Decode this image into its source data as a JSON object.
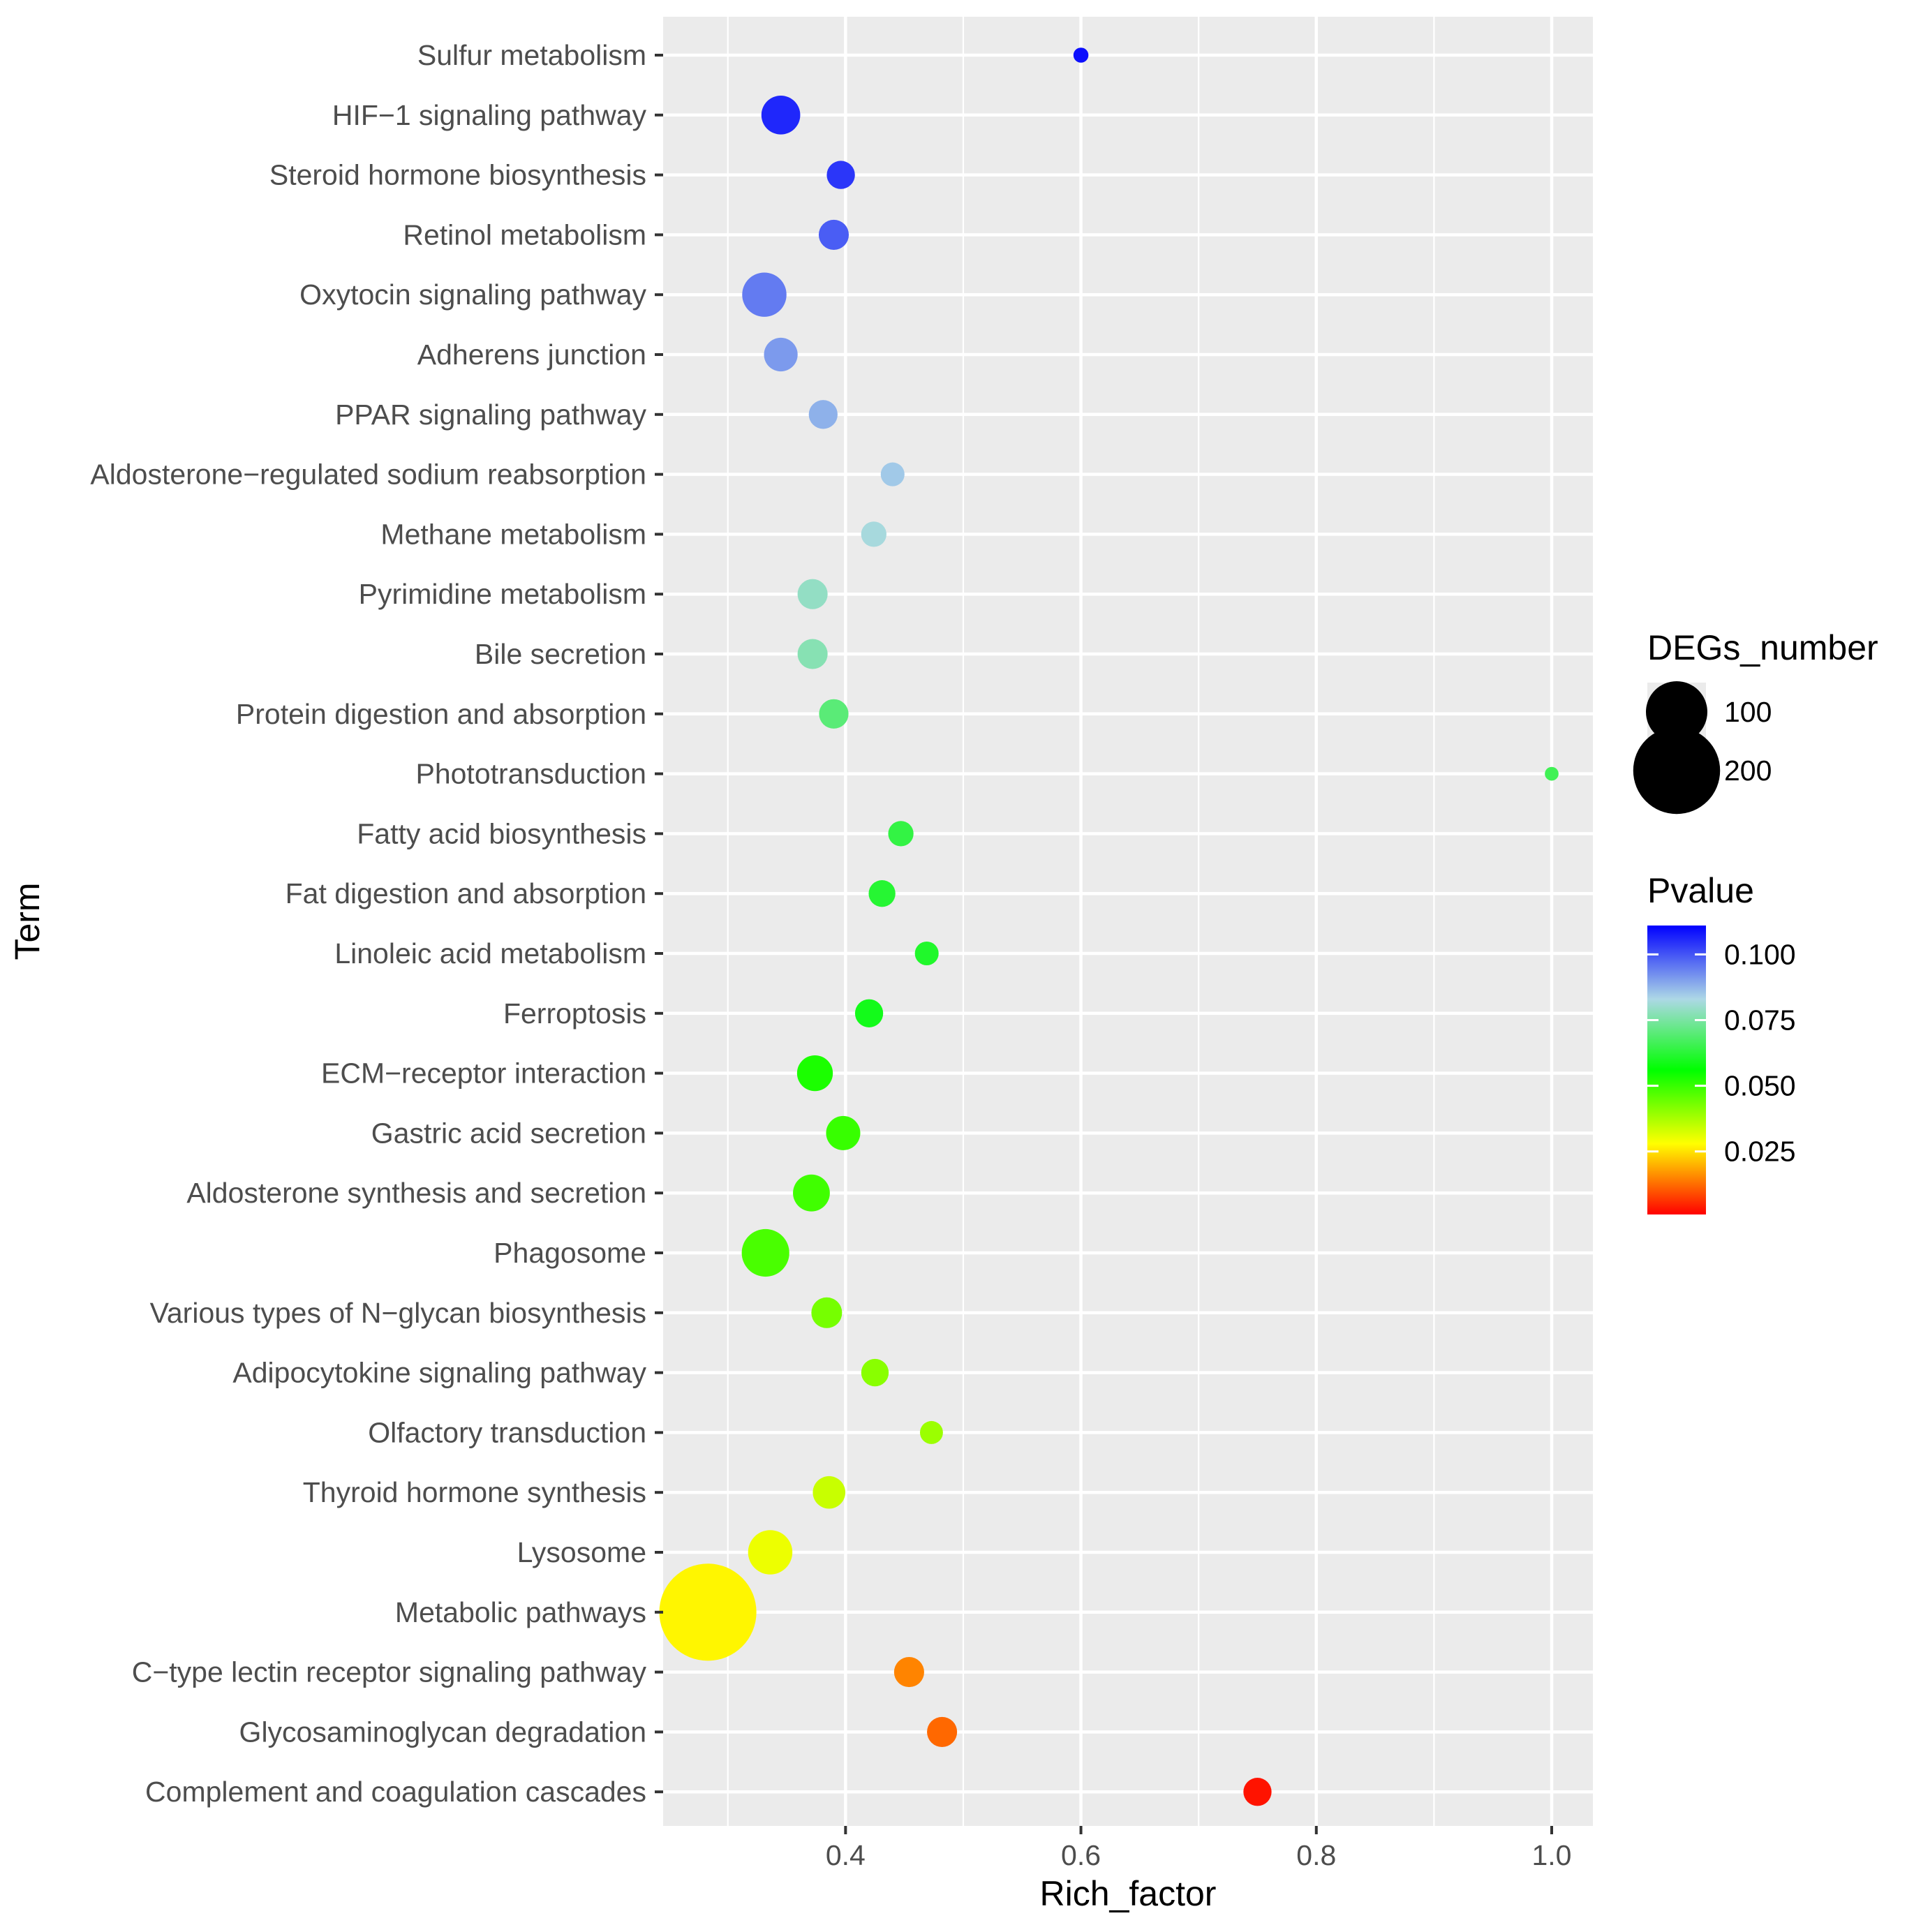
{
  "chart_data": {
    "type": "scatter",
    "xlabel": "Rich_factor",
    "ylabel": "Term",
    "xlim": [
      0.245,
      1.035
    ],
    "x_ticks": [
      {
        "value": 0.4,
        "label": "0.4"
      },
      {
        "value": 0.6,
        "label": "0.6"
      },
      {
        "value": 0.8,
        "label": "0.8"
      },
      {
        "value": 1.0,
        "label": "1.0"
      }
    ],
    "grid": true,
    "points": [
      {
        "term": "Sulfur metabolism",
        "rich_factor": 0.6,
        "degs_number": 6,
        "pvalue": 0.109
      },
      {
        "term": "HIF−1 signaling pathway",
        "rich_factor": 0.345,
        "degs_number": 40,
        "pvalue": 0.106
      },
      {
        "term": "Steroid hormone biosynthesis",
        "rich_factor": 0.396,
        "degs_number": 21,
        "pvalue": 0.104
      },
      {
        "term": "Retinol metabolism",
        "rich_factor": 0.39,
        "degs_number": 24,
        "pvalue": 0.099
      },
      {
        "term": "Oxytocin signaling pathway",
        "rich_factor": 0.331,
        "degs_number": 52,
        "pvalue": 0.095
      },
      {
        "term": "Adherens junction",
        "rich_factor": 0.345,
        "degs_number": 30,
        "pvalue": 0.091
      },
      {
        "term": "PPAR signaling pathway",
        "rich_factor": 0.381,
        "degs_number": 22,
        "pvalue": 0.088
      },
      {
        "term": "Aldosterone−regulated sodium reabsorption",
        "rich_factor": 0.44,
        "degs_number": 15,
        "pvalue": 0.085
      },
      {
        "term": "Methane metabolism",
        "rich_factor": 0.424,
        "degs_number": 17,
        "pvalue": 0.082
      },
      {
        "term": "Pyrimidine metabolism",
        "rich_factor": 0.372,
        "degs_number": 24,
        "pvalue": 0.079
      },
      {
        "term": "Bile secretion",
        "rich_factor": 0.372,
        "degs_number": 24,
        "pvalue": 0.077
      },
      {
        "term": "Protein digestion and absorption",
        "rich_factor": 0.39,
        "degs_number": 23,
        "pvalue": 0.07
      },
      {
        "term": "Phototransduction",
        "rich_factor": 1.0,
        "degs_number": 5,
        "pvalue": 0.066
      },
      {
        "term": "Fatty acid biosynthesis",
        "rich_factor": 0.447,
        "degs_number": 17,
        "pvalue": 0.064
      },
      {
        "term": "Fat digestion and absorption",
        "rich_factor": 0.431,
        "degs_number": 19,
        "pvalue": 0.062
      },
      {
        "term": "Linoleic acid metabolism",
        "rich_factor": 0.469,
        "degs_number": 15,
        "pvalue": 0.061
      },
      {
        "term": "Ferroptosis",
        "rich_factor": 0.42,
        "degs_number": 21,
        "pvalue": 0.059
      },
      {
        "term": "ECM−receptor interaction",
        "rich_factor": 0.374,
        "degs_number": 34,
        "pvalue": 0.053
      },
      {
        "term": "Gastric acid secretion",
        "rich_factor": 0.398,
        "degs_number": 31,
        "pvalue": 0.05
      },
      {
        "term": "Aldosterone synthesis and secretion",
        "rich_factor": 0.371,
        "degs_number": 36,
        "pvalue": 0.049
      },
      {
        "term": "Phagosome",
        "rich_factor": 0.332,
        "degs_number": 60,
        "pvalue": 0.048
      },
      {
        "term": "Various types of N−glycan biosynthesis",
        "rich_factor": 0.384,
        "degs_number": 25,
        "pvalue": 0.043
      },
      {
        "term": "Adipocytokine signaling pathway",
        "rich_factor": 0.425,
        "degs_number": 20,
        "pvalue": 0.041
      },
      {
        "term": "Olfactory transduction",
        "rich_factor": 0.473,
        "degs_number": 14,
        "pvalue": 0.039
      },
      {
        "term": "Thyroid hormone synthesis",
        "rich_factor": 0.386,
        "degs_number": 28,
        "pvalue": 0.034
      },
      {
        "term": "Lysosome",
        "rich_factor": 0.336,
        "degs_number": 52,
        "pvalue": 0.03
      },
      {
        "term": "Metabolic pathways",
        "rich_factor": 0.283,
        "degs_number": 250,
        "pvalue": 0.027
      },
      {
        "term": "C−type lectin receptor signaling pathway",
        "rich_factor": 0.454,
        "degs_number": 24,
        "pvalue": 0.015
      },
      {
        "term": "Glycosaminoglycan degradation",
        "rich_factor": 0.482,
        "degs_number": 24,
        "pvalue": 0.012
      },
      {
        "term": "Complement and coagulation cascades",
        "rich_factor": 0.75,
        "degs_number": 21,
        "pvalue": 0.003
      }
    ],
    "size_legend": {
      "title": "DEGs_number",
      "entries": [
        {
          "value": 100,
          "label": "100"
        },
        {
          "value": 200,
          "label": "200"
        }
      ]
    },
    "color_legend": {
      "title": "Pvalue",
      "range": [
        0.001,
        0.111
      ],
      "ticks": [
        {
          "value": 0.1,
          "label": "0.100"
        },
        {
          "value": 0.075,
          "label": "0.075"
        },
        {
          "value": 0.05,
          "label": "0.050"
        },
        {
          "value": 0.025,
          "label": "0.025"
        }
      ],
      "gradient_stops": [
        {
          "value": 0.001,
          "color": "#ff0000"
        },
        {
          "value": 0.028,
          "color": "#ffff00"
        },
        {
          "value": 0.056,
          "color": "#00ff00"
        },
        {
          "value": 0.083,
          "color": "#add8e6"
        },
        {
          "value": 0.111,
          "color": "#0000ff"
        }
      ]
    },
    "colors": {
      "panel_background": "#ebebeb",
      "gridline": "#ffffff",
      "axis_text": "#4d4d4d",
      "tick_mark": "#333333",
      "title_text": "#000000"
    }
  }
}
